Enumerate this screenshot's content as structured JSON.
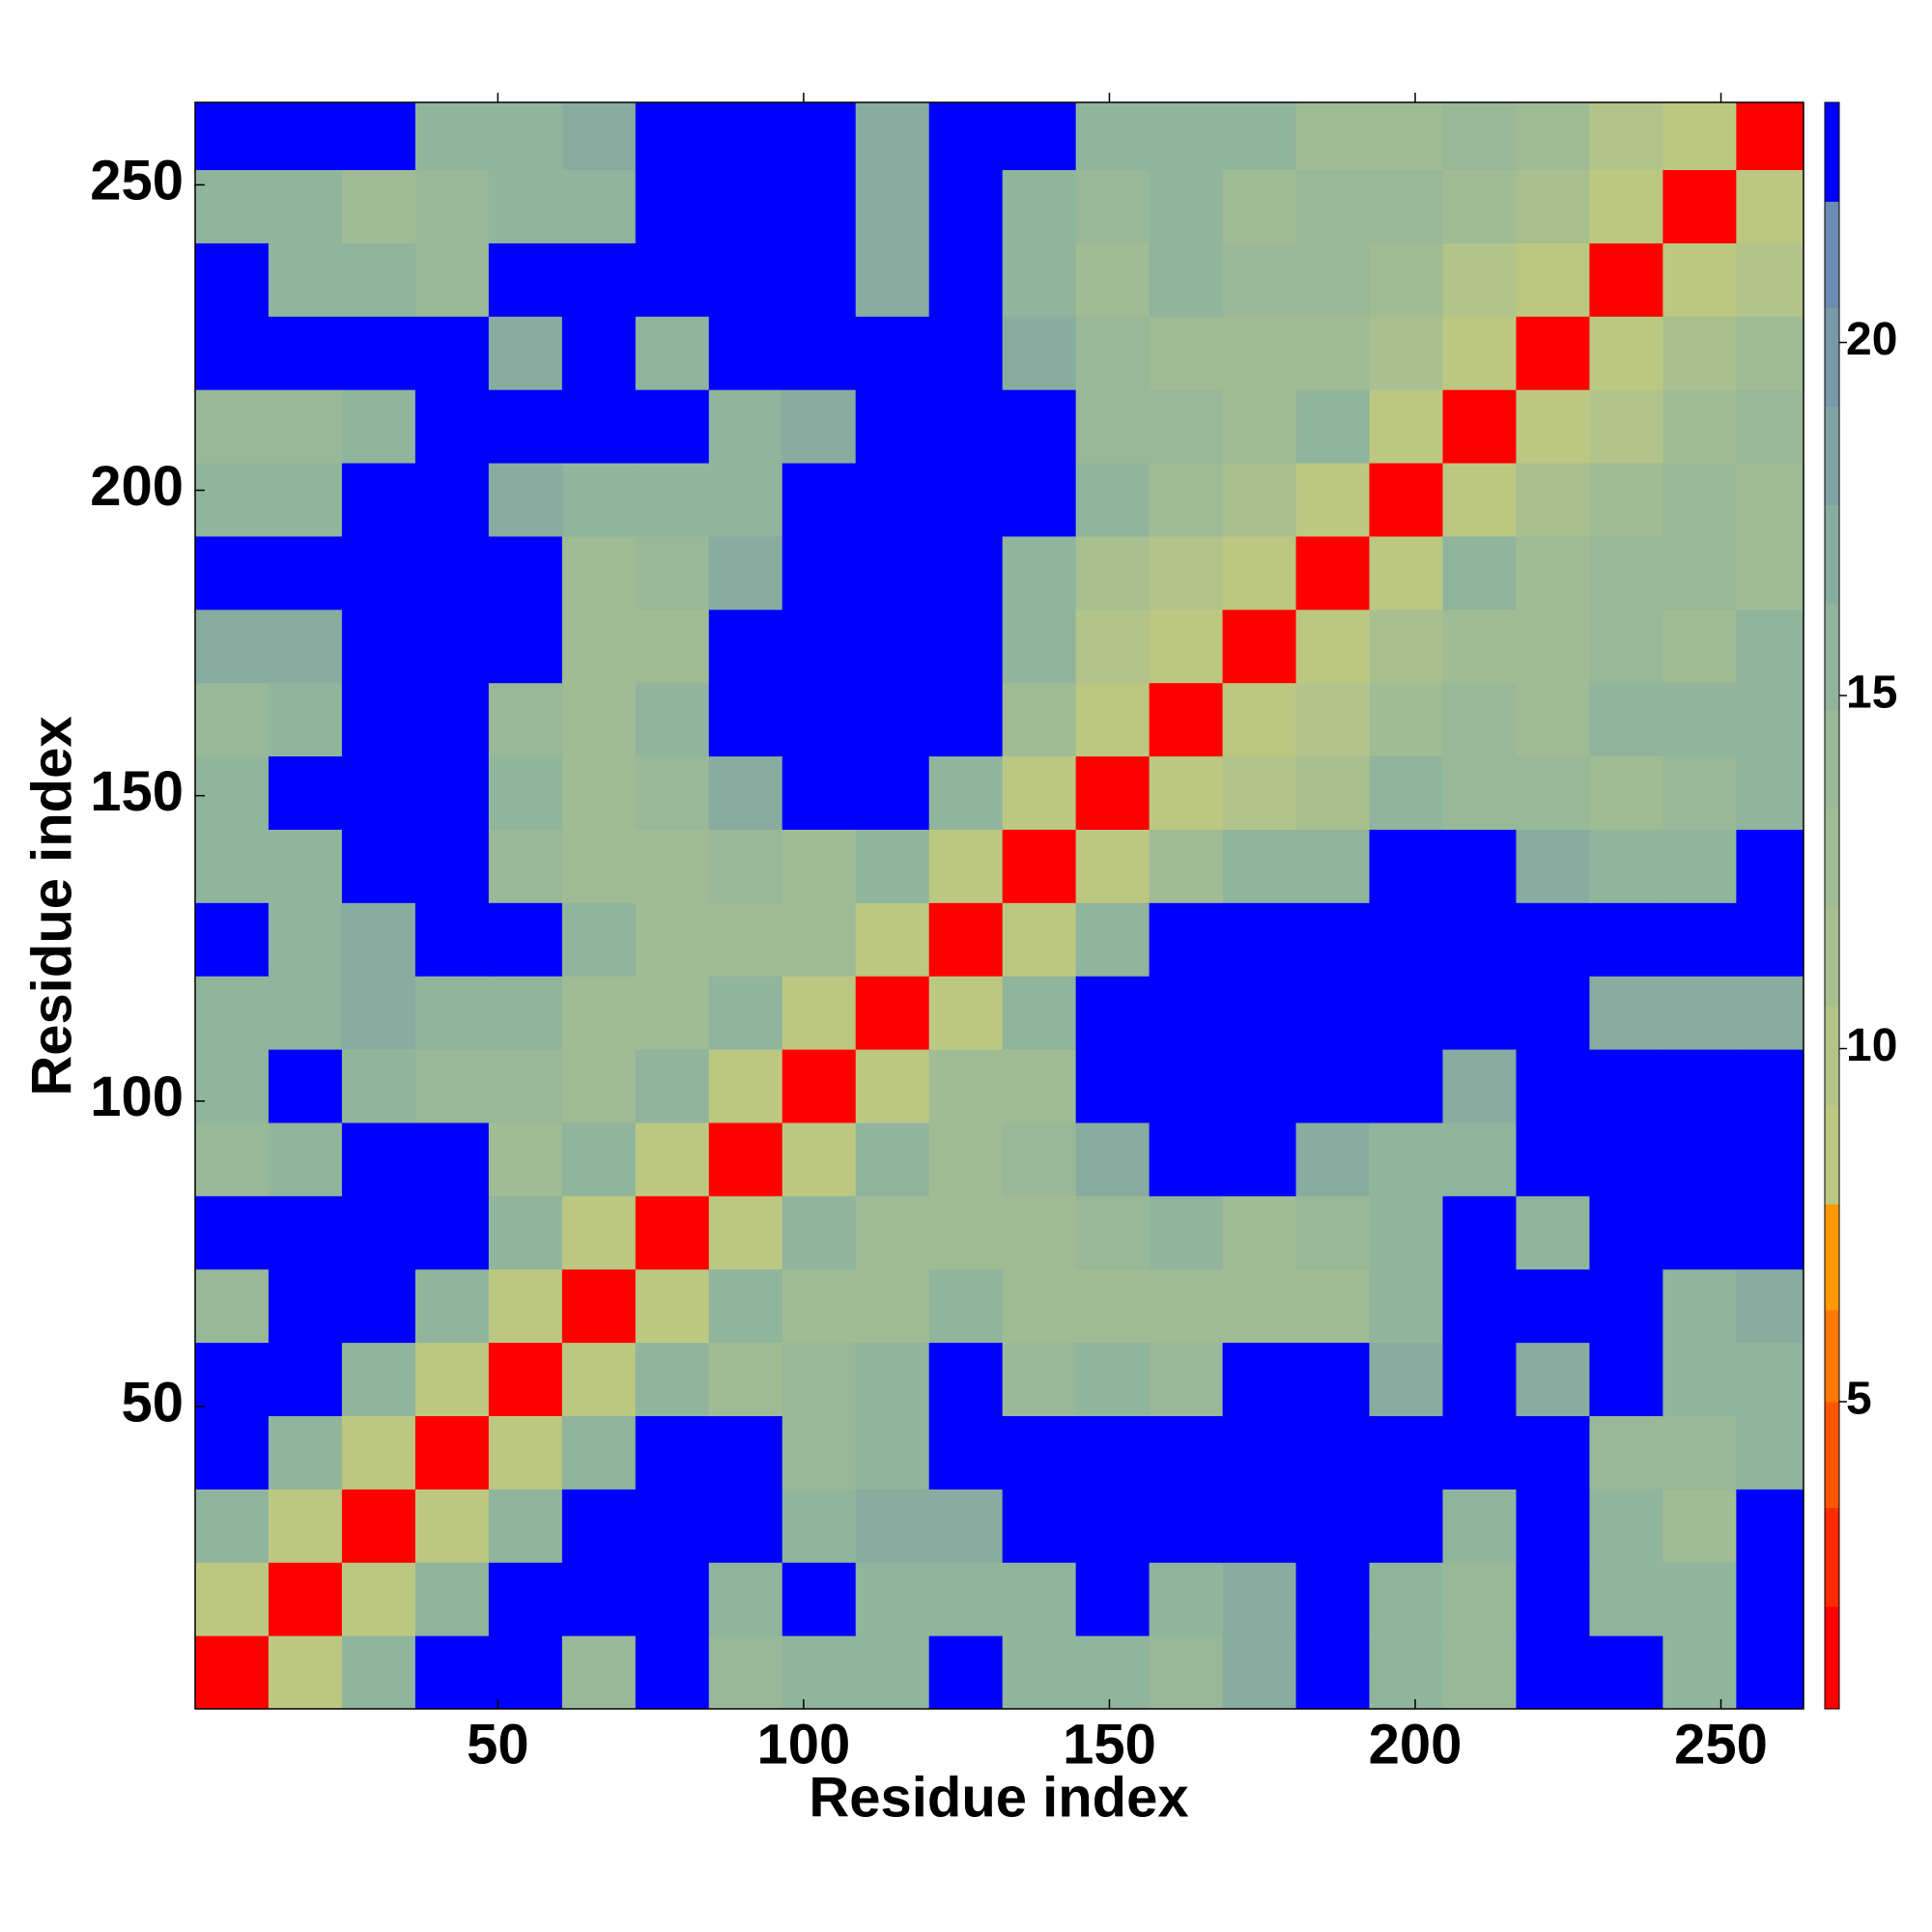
{
  "chart_data": {
    "type": "heatmap",
    "x_label": "Residue index",
    "y_label": "Residue index",
    "xlim": [
      0.5,
      263.5
    ],
    "ylim": [
      0.5,
      263.5
    ],
    "xticks": [
      50,
      100,
      150,
      200,
      250
    ],
    "yticks": [
      50,
      100,
      150,
      200,
      250
    ],
    "bins": [
      0.5,
      12.5,
      24.5,
      36.5,
      48.5,
      60.5,
      72.5,
      84.5,
      96.5,
      108.5,
      120.5,
      132.5,
      144.5,
      156.5,
      168.5,
      180.5,
      192.5,
      204.5,
      216.5,
      228.5,
      240.5,
      252.5,
      264.5
    ],
    "values": [
      [
        2,
        9,
        15,
        23,
        23,
        14,
        23,
        14,
        16,
        16,
        23,
        15,
        16,
        14,
        17,
        23,
        15,
        14,
        23,
        23,
        15,
        23
      ],
      [
        9,
        2,
        9,
        15,
        23,
        23,
        23,
        15,
        23,
        15,
        16,
        16,
        23,
        15,
        17,
        23,
        16,
        14,
        23,
        16,
        16,
        23
      ],
      [
        15,
        9,
        2,
        9,
        15,
        23,
        23,
        23,
        16,
        17,
        17,
        23,
        23,
        23,
        23,
        23,
        23,
        16,
        23,
        15,
        13,
        23
      ],
      [
        23,
        15,
        9,
        2,
        9,
        15,
        23,
        23,
        14,
        15,
        23,
        23,
        23,
        23,
        23,
        23,
        23,
        23,
        23,
        14,
        14,
        16
      ],
      [
        23,
        23,
        15,
        9,
        2,
        9,
        15,
        12,
        14,
        16,
        23,
        14,
        16,
        14,
        23,
        23,
        17,
        23,
        17,
        23,
        15,
        16
      ],
      [
        14,
        23,
        23,
        15,
        9,
        2,
        9,
        15,
        12,
        12,
        16,
        13,
        13,
        13,
        12,
        13,
        16,
        23,
        23,
        23,
        16,
        17
      ],
      [
        23,
        23,
        23,
        23,
        15,
        9,
        2,
        9,
        15,
        13,
        12,
        12,
        14,
        16,
        13,
        14,
        16,
        23,
        16,
        23,
        23,
        23
      ],
      [
        14,
        15,
        23,
        23,
        12,
        15,
        9,
        2,
        9,
        15,
        13,
        14,
        17,
        23,
        23,
        17,
        16,
        15,
        23,
        23,
        23,
        23
      ],
      [
        16,
        23,
        16,
        14,
        14,
        12,
        15,
        9,
        2,
        9,
        13,
        12,
        23,
        23,
        23,
        23,
        23,
        17,
        23,
        23,
        23,
        23
      ],
      [
        16,
        15,
        17,
        15,
        16,
        12,
        13,
        15,
        9,
        2,
        9,
        15,
        23,
        23,
        23,
        23,
        23,
        23,
        23,
        17,
        17,
        17
      ],
      [
        23,
        16,
        17,
        23,
        23,
        16,
        12,
        13,
        13,
        9,
        2,
        9,
        15,
        23,
        23,
        23,
        23,
        23,
        23,
        23,
        23,
        23
      ],
      [
        15,
        16,
        23,
        23,
        14,
        13,
        12,
        14,
        12,
        15,
        9,
        2,
        9,
        12,
        15,
        15,
        23,
        23,
        17,
        16,
        16,
        23
      ],
      [
        16,
        23,
        23,
        23,
        16,
        13,
        14,
        17,
        23,
        23,
        15,
        9,
        2,
        9,
        10,
        11,
        15,
        14,
        14,
        13,
        14,
        15
      ],
      [
        14,
        15,
        23,
        23,
        14,
        13,
        16,
        23,
        23,
        23,
        23,
        12,
        9,
        2,
        9,
        10,
        12,
        14,
        13,
        15,
        15,
        15
      ],
      [
        17,
        17,
        23,
        23,
        23,
        12,
        13,
        23,
        23,
        23,
        23,
        15,
        10,
        9,
        2,
        9,
        11,
        12,
        13,
        14,
        13,
        15
      ],
      [
        23,
        23,
        23,
        23,
        23,
        13,
        14,
        17,
        23,
        23,
        23,
        15,
        11,
        10,
        9,
        2,
        9,
        15,
        12,
        14,
        14,
        13
      ],
      [
        15,
        16,
        23,
        23,
        17,
        16,
        16,
        16,
        23,
        23,
        23,
        23,
        15,
        12,
        11,
        9,
        2,
        9,
        11,
        12,
        14,
        13
      ],
      [
        14,
        14,
        16,
        23,
        23,
        23,
        23,
        15,
        17,
        23,
        23,
        23,
        14,
        14,
        12,
        15,
        9,
        2,
        9,
        10,
        12,
        14
      ],
      [
        23,
        23,
        23,
        23,
        17,
        23,
        16,
        23,
        23,
        23,
        23,
        17,
        14,
        13,
        13,
        12,
        11,
        9,
        2,
        9,
        11,
        12
      ],
      [
        23,
        16,
        15,
        14,
        23,
        23,
        23,
        23,
        23,
        17,
        23,
        16,
        13,
        15,
        14,
        14,
        12,
        10,
        9,
        2,
        9,
        10
      ],
      [
        15,
        16,
        13,
        14,
        15,
        16,
        23,
        23,
        23,
        17,
        23,
        16,
        14,
        15,
        13,
        14,
        14,
        12,
        11,
        9,
        2,
        9
      ],
      [
        23,
        23,
        23,
        16,
        16,
        17,
        23,
        23,
        23,
        17,
        23,
        23,
        15,
        15,
        15,
        13,
        13,
        14,
        12,
        10,
        9,
        2
      ]
    ],
    "colorbar": {
      "lim": [
        0.65,
        23.4
      ],
      "ticks": [
        5,
        10,
        15,
        20
      ],
      "levels": [
        0.65,
        2.1,
        3.5,
        5,
        6.3,
        7.8,
        9.2,
        10.6,
        12,
        13.4,
        14.8,
        16.3,
        17.7,
        19.1,
        20.5,
        22,
        23.4
      ],
      "colors": [
        "#ff0000",
        "#ff2a00",
        "#ff5500",
        "#ff7700",
        "#ff9900",
        "#bcc882",
        "#b2c48a",
        "#a8c090",
        "#a0bc94",
        "#98b898",
        "#90b49c",
        "#88ac9f",
        "#80a4a4",
        "#7898aa",
        "#6a8cb0",
        "#0000ff"
      ]
    }
  }
}
